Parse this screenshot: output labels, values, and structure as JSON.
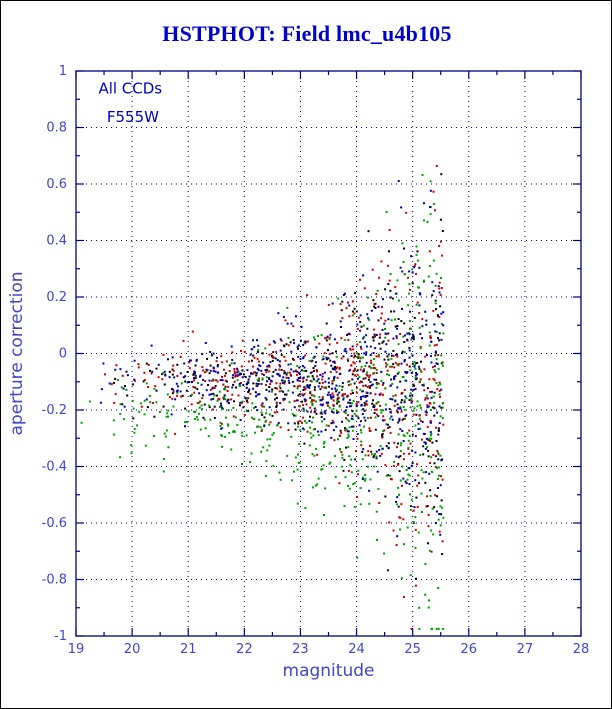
{
  "title": {
    "text": "HSTPHOT: Field lmc_u4b105",
    "color": "#0000cc"
  },
  "chart_data": {
    "type": "scatter",
    "title": "HSTPHOT: Field lmc_u4b105",
    "xlabel": "magnitude",
    "ylabel": "aperture correction",
    "xlim": [
      19,
      28
    ],
    "ylim": [
      -1,
      1
    ],
    "x_ticks": [
      19,
      20,
      21,
      22,
      23,
      24,
      25,
      26,
      27,
      28
    ],
    "x_tick_labels": [
      "19",
      "20",
      "21",
      "22",
      "23",
      "24",
      "25",
      "26",
      "27",
      "28"
    ],
    "y_ticks": [
      -1,
      -0.8,
      -0.6,
      -0.4,
      -0.2,
      0,
      0.2,
      0.4,
      0.6,
      0.8,
      1
    ],
    "y_tick_labels": [
      "-1",
      "-0.8",
      "-0.6",
      "-0.4",
      "-0.2",
      "0",
      "0.2",
      "0.4",
      "0.6",
      "0.8",
      "1"
    ],
    "grid": {
      "show": true,
      "style": "dashed",
      "color": "#000080"
    },
    "axis_color": "#000080",
    "tick_label_color": "#4444cc",
    "axis_label_color": "#4444cc",
    "annotation_color": "#0000cc",
    "annotations": [
      {
        "text": "All CCDs",
        "x": 19.4,
        "y": 0.92
      },
      {
        "text": "F555W",
        "x": 19.55,
        "y": 0.82
      }
    ],
    "legend_position": "none",
    "series": [
      {
        "name": "ccd-black",
        "color": "#000000",
        "n": 430,
        "seed": 101,
        "mag_min": 19.0,
        "mag_max": 25.55,
        "mag_power": 0.48,
        "y_mean": -0.105,
        "sigma_base": 0.045,
        "sigma_amp": 0.012,
        "sigma_growth": 0.72,
        "sigma_ref": 21,
        "sigma_max": 0.42
      },
      {
        "name": "ccd-red",
        "color": "#cc0000",
        "n": 500,
        "seed": 202,
        "mag_min": 19.0,
        "mag_max": 25.55,
        "mag_power": 0.48,
        "y_mean": -0.1,
        "sigma_base": 0.05,
        "sigma_amp": 0.013,
        "sigma_growth": 0.72,
        "sigma_ref": 21,
        "sigma_max": 0.42
      },
      {
        "name": "ccd-green",
        "color": "#00a000",
        "n": 540,
        "seed": 303,
        "mag_min": 19.0,
        "mag_max": 25.55,
        "mag_power": 0.48,
        "y_mean": -0.215,
        "sigma_base": 0.07,
        "sigma_amp": 0.016,
        "sigma_growth": 0.7,
        "sigma_ref": 21,
        "sigma_max": 0.42
      },
      {
        "name": "ccd-blue",
        "color": "#0000b4",
        "n": 490,
        "seed": 404,
        "mag_min": 19.0,
        "mag_max": 25.55,
        "mag_power": 0.48,
        "y_mean": -0.095,
        "sigma_base": 0.042,
        "sigma_amp": 0.012,
        "sigma_growth": 0.72,
        "sigma_ref": 21,
        "sigma_max": 0.42
      }
    ]
  }
}
